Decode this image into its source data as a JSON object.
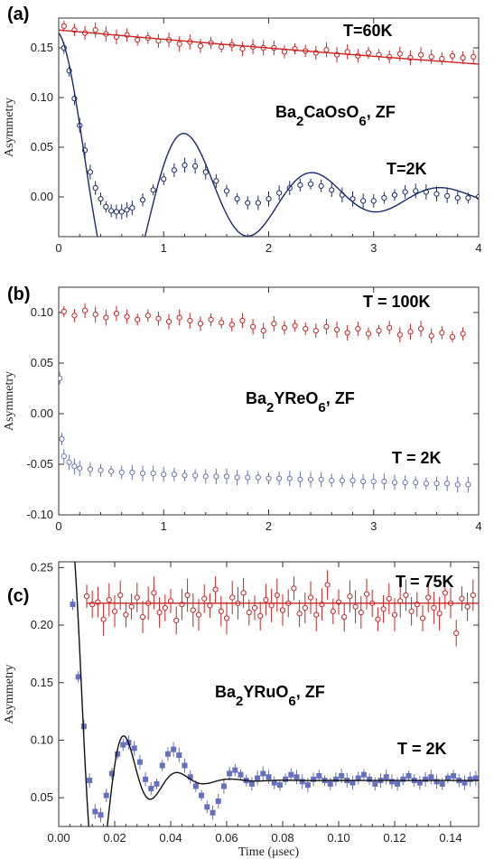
{
  "chart_data": [
    {
      "type": "scatter",
      "panel_label": "(a)",
      "ylabel": "Asymmetry",
      "xlim": [
        0,
        4
      ],
      "ylim": [
        -0.04,
        0.18
      ],
      "xticks": [
        "0",
        "1",
        "2",
        "3",
        "4"
      ],
      "yticks": [
        "0.00",
        "0.05",
        "0.10",
        "0.15"
      ],
      "annotations": {
        "compound": "Ba2CaOsO6, ZF",
        "t_high": "T=60K",
        "t_low": "T=2K"
      },
      "series": [
        {
          "name": "T=60K",
          "color": "#cc2222",
          "marker": "circle-open",
          "errorbars": true,
          "x": [
            0.05,
            0.15,
            0.25,
            0.35,
            0.45,
            0.55,
            0.65,
            0.75,
            0.85,
            0.95,
            1.05,
            1.15,
            1.25,
            1.35,
            1.45,
            1.55,
            1.65,
            1.75,
            1.85,
            1.95,
            2.05,
            2.15,
            2.25,
            2.35,
            2.45,
            2.55,
            2.65,
            2.75,
            2.85,
            2.95,
            3.05,
            3.15,
            3.25,
            3.35,
            3.45,
            3.55,
            3.65,
            3.75,
            3.85,
            3.95
          ],
          "y": [
            0.172,
            0.168,
            0.165,
            0.168,
            0.164,
            0.161,
            0.163,
            0.158,
            0.16,
            0.157,
            0.158,
            0.154,
            0.156,
            0.152,
            0.155,
            0.151,
            0.153,
            0.149,
            0.151,
            0.15,
            0.15,
            0.146,
            0.149,
            0.147,
            0.145,
            0.148,
            0.143,
            0.146,
            0.142,
            0.145,
            0.143,
            0.141,
            0.144,
            0.14,
            0.143,
            0.141,
            0.139,
            0.142,
            0.14,
            0.141
          ],
          "fit": {
            "type": "exp_decay",
            "a0": 0.168,
            "tau": 17.5
          }
        },
        {
          "name": "T=2K",
          "color": "#1a2a6c",
          "marker": "circle-open",
          "errorbars": true,
          "x": [
            0.05,
            0.1,
            0.15,
            0.2,
            0.25,
            0.3,
            0.35,
            0.4,
            0.45,
            0.5,
            0.55,
            0.6,
            0.65,
            0.7,
            0.8,
            0.9,
            1.0,
            1.1,
            1.2,
            1.3,
            1.4,
            1.5,
            1.6,
            1.7,
            1.8,
            1.9,
            2.0,
            2.1,
            2.2,
            2.3,
            2.4,
            2.5,
            2.6,
            2.7,
            2.8,
            2.9,
            3.0,
            3.1,
            3.2,
            3.3,
            3.4,
            3.5,
            3.6,
            3.7,
            3.8,
            3.9,
            4.0
          ],
          "y": [
            0.15,
            0.127,
            0.099,
            0.072,
            0.047,
            0.025,
            0.009,
            -0.002,
            -0.01,
            -0.014,
            -0.015,
            -0.015,
            -0.013,
            -0.011,
            -0.003,
            0.007,
            0.018,
            0.027,
            0.032,
            0.031,
            0.025,
            0.016,
            0.006,
            -0.002,
            -0.006,
            -0.006,
            -0.002,
            0.004,
            0.009,
            0.012,
            0.013,
            0.011,
            0.007,
            0.002,
            -0.002,
            -0.004,
            -0.004,
            -0.001,
            0.002,
            0.005,
            0.006,
            0.005,
            0.003,
            0.001,
            -0.001,
            -0.001,
            0.0
          ],
          "fit": {
            "type": "damped_cosine",
            "a0": 0.165,
            "tau": 1.27,
            "period": 1.22,
            "phase": 0.0
          }
        }
      ]
    },
    {
      "type": "scatter",
      "panel_label": "(b)",
      "ylabel": "Asymmetry",
      "xlim": [
        0,
        4
      ],
      "ylim": [
        -0.1,
        0.125
      ],
      "xticks": [
        "0",
        "1",
        "2",
        "3",
        "4"
      ],
      "yticks": [
        "-0.10",
        "-0.05",
        "0.00",
        "0.05",
        "0.10"
      ],
      "annotations": {
        "compound": "Ba2YReO6, ZF",
        "t_high": "T = 100K",
        "t_low": "T = 2K"
      },
      "series": [
        {
          "name": "T = 100K",
          "color": "#cc2222",
          "marker": "circle-open",
          "errorbars": true,
          "x": [
            0.05,
            0.15,
            0.25,
            0.35,
            0.45,
            0.55,
            0.65,
            0.75,
            0.85,
            0.95,
            1.05,
            1.15,
            1.25,
            1.35,
            1.45,
            1.55,
            1.65,
            1.75,
            1.85,
            1.95,
            2.05,
            2.15,
            2.25,
            2.35,
            2.45,
            2.55,
            2.65,
            2.75,
            2.85,
            2.95,
            3.05,
            3.15,
            3.25,
            3.35,
            3.45,
            3.55,
            3.65,
            3.75,
            3.85
          ],
          "y": [
            0.101,
            0.097,
            0.102,
            0.098,
            0.095,
            0.099,
            0.096,
            0.093,
            0.097,
            0.094,
            0.091,
            0.095,
            0.092,
            0.089,
            0.093,
            0.09,
            0.088,
            0.092,
            0.086,
            0.082,
            0.089,
            0.085,
            0.087,
            0.084,
            0.082,
            0.086,
            0.083,
            0.08,
            0.084,
            0.079,
            0.082,
            0.085,
            0.078,
            0.081,
            0.084,
            0.077,
            0.08,
            0.076,
            0.079
          ]
        },
        {
          "name": "T = 2K",
          "color": "#6a74b0",
          "marker": "circle-open",
          "errorbars": true,
          "x": [
            0.01,
            0.03,
            0.05,
            0.1,
            0.15,
            0.2,
            0.3,
            0.4,
            0.5,
            0.6,
            0.7,
            0.8,
            0.9,
            1.0,
            1.1,
            1.2,
            1.3,
            1.4,
            1.5,
            1.6,
            1.7,
            1.8,
            1.9,
            2.0,
            2.1,
            2.2,
            2.3,
            2.4,
            2.5,
            2.6,
            2.7,
            2.8,
            2.9,
            3.0,
            3.1,
            3.2,
            3.3,
            3.4,
            3.5,
            3.6,
            3.7,
            3.8,
            3.9
          ],
          "y": [
            0.035,
            -0.025,
            -0.042,
            -0.048,
            -0.052,
            -0.054,
            -0.055,
            -0.056,
            -0.057,
            -0.058,
            -0.058,
            -0.059,
            -0.059,
            -0.06,
            -0.06,
            -0.061,
            -0.061,
            -0.062,
            -0.062,
            -0.062,
            -0.063,
            -0.063,
            -0.063,
            -0.064,
            -0.064,
            -0.064,
            -0.065,
            -0.065,
            -0.065,
            -0.066,
            -0.066,
            -0.066,
            -0.067,
            -0.067,
            -0.067,
            -0.068,
            -0.068,
            -0.068,
            -0.069,
            -0.069,
            -0.069,
            -0.07,
            -0.07
          ]
        }
      ]
    },
    {
      "type": "scatter",
      "panel_label": "(c)",
      "ylabel": "Asymmetry",
      "xlabel": "Time (μsec)",
      "xlim": [
        0,
        0.15
      ],
      "ylim": [
        0.025,
        0.255
      ],
      "xticks": [
        "0.00",
        "0.02",
        "0.04",
        "0.06",
        "0.08",
        "0.10",
        "0.12",
        "0.14"
      ],
      "yticks": [
        "0.05",
        "0.10",
        "0.15",
        "0.20",
        "0.25"
      ],
      "annotations": {
        "compound": "Ba2YRuO6, ZF",
        "t_high": "T = 75K",
        "t_low": "T = 2K"
      },
      "series": [
        {
          "name": "T = 75K",
          "color": "#cc2222",
          "marker": "circle-open",
          "errorbars": true,
          "x": [
            0.01,
            0.012,
            0.014,
            0.016,
            0.018,
            0.02,
            0.022,
            0.024,
            0.026,
            0.028,
            0.03,
            0.032,
            0.034,
            0.036,
            0.038,
            0.04,
            0.042,
            0.044,
            0.046,
            0.048,
            0.05,
            0.052,
            0.054,
            0.056,
            0.058,
            0.06,
            0.062,
            0.064,
            0.066,
            0.068,
            0.07,
            0.072,
            0.074,
            0.076,
            0.078,
            0.08,
            0.082,
            0.084,
            0.086,
            0.088,
            0.09,
            0.092,
            0.094,
            0.096,
            0.098,
            0.1,
            0.102,
            0.104,
            0.106,
            0.108,
            0.11,
            0.112,
            0.114,
            0.116,
            0.118,
            0.12,
            0.122,
            0.124,
            0.126,
            0.128,
            0.13,
            0.132,
            0.134,
            0.136,
            0.138,
            0.14,
            0.142,
            0.144,
            0.146,
            0.148
          ],
          "y": [
            0.225,
            0.218,
            0.22,
            0.205,
            0.222,
            0.212,
            0.226,
            0.209,
            0.216,
            0.224,
            0.207,
            0.219,
            0.228,
            0.211,
            0.215,
            0.221,
            0.204,
            0.218,
            0.226,
            0.213,
            0.209,
            0.223,
            0.217,
            0.231,
            0.212,
            0.206,
            0.224,
            0.219,
            0.228,
            0.211,
            0.215,
            0.208,
            0.222,
            0.217,
            0.226,
            0.213,
            0.219,
            0.232,
            0.21,
            0.215,
            0.224,
            0.209,
            0.218,
            0.235,
            0.212,
            0.22,
            0.207,
            0.225,
            0.216,
            0.211,
            0.227,
            0.219,
            0.205,
            0.214,
            0.223,
            0.209,
            0.221,
            0.226,
            0.212,
            0.218,
            0.206,
            0.224,
            0.215,
            0.21,
            0.228,
            0.219,
            0.193,
            0.223,
            0.216,
            0.226
          ],
          "fit": {
            "type": "constant",
            "a0": 0.219
          }
        },
        {
          "name": "T = 2K",
          "color": "#6670c0",
          "marker": "square-filled",
          "errorbars": true,
          "x": [
            0.005,
            0.007,
            0.009,
            0.011,
            0.013,
            0.015,
            0.017,
            0.019,
            0.021,
            0.023,
            0.025,
            0.027,
            0.029,
            0.031,
            0.033,
            0.035,
            0.037,
            0.039,
            0.041,
            0.043,
            0.045,
            0.047,
            0.049,
            0.051,
            0.053,
            0.055,
            0.057,
            0.059,
            0.061,
            0.063,
            0.065,
            0.067,
            0.069,
            0.071,
            0.073,
            0.075,
            0.077,
            0.079,
            0.081,
            0.083,
            0.085,
            0.087,
            0.089,
            0.091,
            0.093,
            0.095,
            0.097,
            0.099,
            0.101,
            0.103,
            0.105,
            0.107,
            0.109,
            0.111,
            0.113,
            0.115,
            0.117,
            0.119,
            0.121,
            0.123,
            0.125,
            0.127,
            0.129,
            0.131,
            0.133,
            0.135,
            0.137,
            0.139,
            0.141,
            0.143,
            0.145,
            0.147,
            0.149
          ],
          "y": [
            0.218,
            0.155,
            0.112,
            0.065,
            0.038,
            0.035,
            0.052,
            0.071,
            0.088,
            0.096,
            0.098,
            0.093,
            0.081,
            0.066,
            0.058,
            0.062,
            0.078,
            0.088,
            0.092,
            0.087,
            0.078,
            0.068,
            0.06,
            0.052,
            0.042,
            0.037,
            0.047,
            0.06,
            0.071,
            0.074,
            0.07,
            0.065,
            0.062,
            0.067,
            0.071,
            0.068,
            0.063,
            0.061,
            0.066,
            0.07,
            0.068,
            0.064,
            0.061,
            0.066,
            0.069,
            0.065,
            0.062,
            0.066,
            0.069,
            0.065,
            0.063,
            0.067,
            0.07,
            0.066,
            0.062,
            0.065,
            0.068,
            0.064,
            0.062,
            0.066,
            0.069,
            0.065,
            0.063,
            0.066,
            0.068,
            0.064,
            0.062,
            0.067,
            0.069,
            0.065,
            0.063,
            0.066,
            0.067
          ],
          "fit": {
            "type": "damped_cosine_offset",
            "a0": 0.065,
            "amp": 0.21,
            "tau": 0.011,
            "period": 0.019,
            "phase": 0.0,
            "start": 0.005
          }
        }
      ]
    }
  ]
}
